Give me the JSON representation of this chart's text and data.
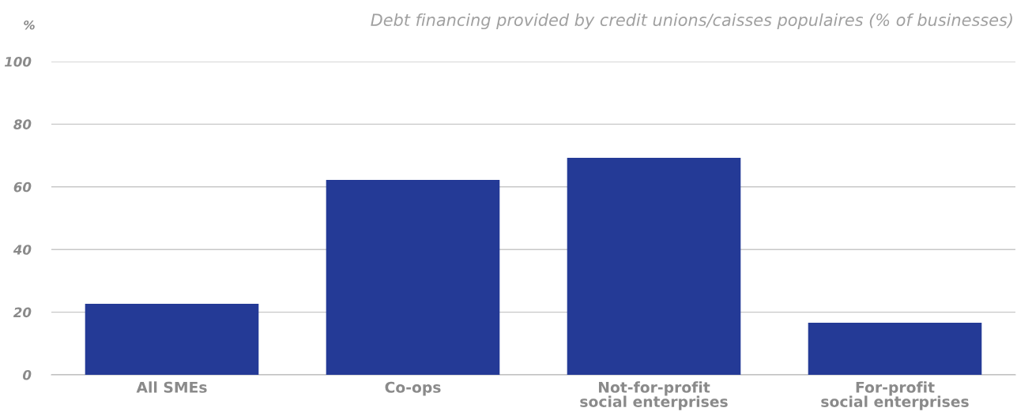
{
  "chart_data": {
    "type": "bar",
    "title": "Debt financing provided by credit unions/caisses populaires (% of businesses)",
    "ylabel": "%",
    "categories": [
      "All SMEs",
      "Co-ops",
      "Not-for-profit\nsocial enterprises",
      "For-profit\nsocial enterprises"
    ],
    "values": [
      22.7,
      62.2,
      69.3,
      16.6
    ],
    "color": "#243a96",
    "ylim": [
      0,
      100
    ],
    "yticks": [
      0,
      20,
      40,
      60,
      80,
      100
    ],
    "grid": "y"
  }
}
